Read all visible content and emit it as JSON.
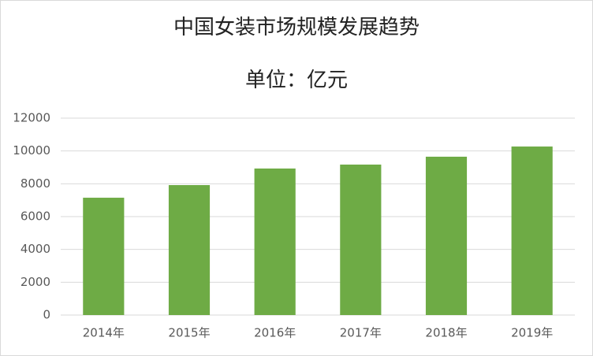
{
  "chart_data": {
    "type": "bar",
    "title": "中国女装市场规模发展趋势",
    "subtitle": "单位：亿元",
    "categories": [
      "2014年",
      "2015年",
      "2016年",
      "2017年",
      "2018年",
      "2019年"
    ],
    "values": [
      7150,
      7920,
      8930,
      9170,
      9650,
      10270
    ],
    "color": "#6eab45",
    "ylim": [
      0,
      12000
    ],
    "yticks": [
      0,
      2000,
      4000,
      6000,
      8000,
      10000,
      12000
    ],
    "grid": true
  }
}
